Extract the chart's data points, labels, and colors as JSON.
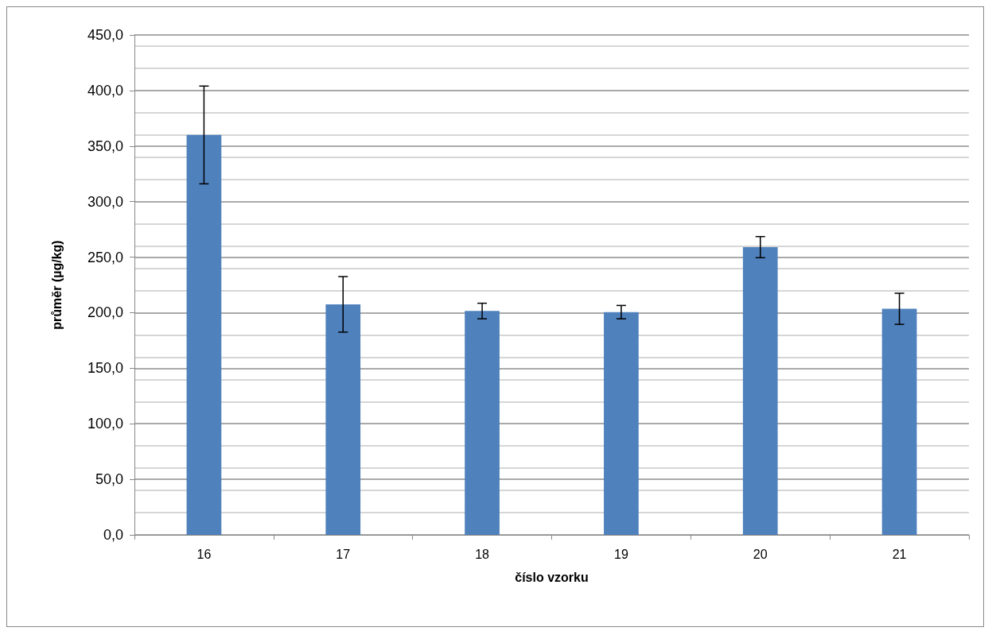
{
  "chart_data": {
    "type": "bar",
    "xlabel": "číslo vzorku",
    "ylabel": "průměr (µg/kg)",
    "categories": [
      "16",
      "17",
      "18",
      "19",
      "20",
      "21"
    ],
    "series": [
      {
        "color": "#4f81bd",
        "values": [
          360,
          207.5,
          201.5,
          200.5,
          259,
          203.5
        ],
        "errors": [
          44,
          25,
          7,
          6,
          9.5,
          14
        ]
      }
    ],
    "ylim": [
      0,
      450
    ],
    "yticks": [
      {
        "value": 0,
        "label": "0,0"
      },
      {
        "value": 50,
        "label": "50,0"
      },
      {
        "value": 100,
        "label": "100,0"
      },
      {
        "value": 150,
        "label": "150,0"
      },
      {
        "value": 200,
        "label": "200,0"
      },
      {
        "value": 250,
        "label": "250,0"
      },
      {
        "value": 300,
        "label": "300,0"
      },
      {
        "value": 350,
        "label": "350,0"
      },
      {
        "value": 400,
        "label": "400,0"
      },
      {
        "value": 450,
        "label": "450,0"
      }
    ],
    "grid": "y"
  }
}
